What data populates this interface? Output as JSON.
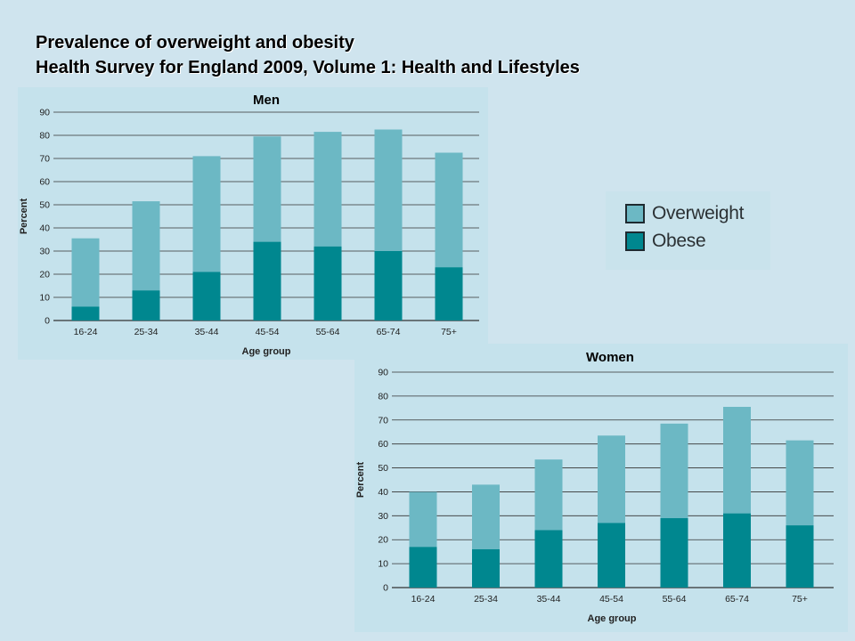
{
  "slide": {
    "title_line1": "Prevalence of overweight and obesity",
    "title_line2": "Health Survey for England 2009, Volume 1: Health and Lifestyles"
  },
  "legend": {
    "items": [
      {
        "label": "Overweight",
        "color": "#6cb8c4"
      },
      {
        "label": "Obese",
        "color": "#00878f"
      }
    ]
  },
  "colors": {
    "overweight": "#6cb8c4",
    "obese": "#00878f",
    "gridline": "#333333",
    "panel_background": "#c5e2ec"
  },
  "chart_data": [
    {
      "type": "bar",
      "stacked": true,
      "title": "Men",
      "xlabel": "Age group",
      "ylabel": "Percent",
      "ylim": [
        0,
        90
      ],
      "yticks": [
        0,
        10,
        20,
        30,
        40,
        50,
        60,
        70,
        80,
        90
      ],
      "grid": true,
      "categories": [
        "16-24",
        "25-34",
        "35-44",
        "45-54",
        "55-64",
        "65-74",
        "75+"
      ],
      "series": [
        {
          "name": "Obese",
          "values": [
            6,
            13,
            21,
            34,
            32,
            30,
            23
          ]
        },
        {
          "name": "Overweight",
          "values": [
            29.5,
            38.5,
            50,
            45.5,
            49.5,
            52.5,
            49.5
          ]
        }
      ]
    },
    {
      "type": "bar",
      "stacked": true,
      "title": "Women",
      "xlabel": "Age group",
      "ylabel": "Percent",
      "ylim": [
        0,
        90
      ],
      "yticks": [
        0,
        10,
        20,
        30,
        40,
        50,
        60,
        70,
        80,
        90
      ],
      "grid": true,
      "categories": [
        "16-24",
        "25-34",
        "35-44",
        "45-54",
        "55-64",
        "65-74",
        "75+"
      ],
      "series": [
        {
          "name": "Obese",
          "values": [
            17,
            16,
            24,
            27,
            29,
            31,
            26
          ]
        },
        {
          "name": "Overweight",
          "values": [
            23,
            27,
            29.5,
            36.5,
            39.5,
            44.5,
            35.5
          ]
        }
      ]
    }
  ]
}
